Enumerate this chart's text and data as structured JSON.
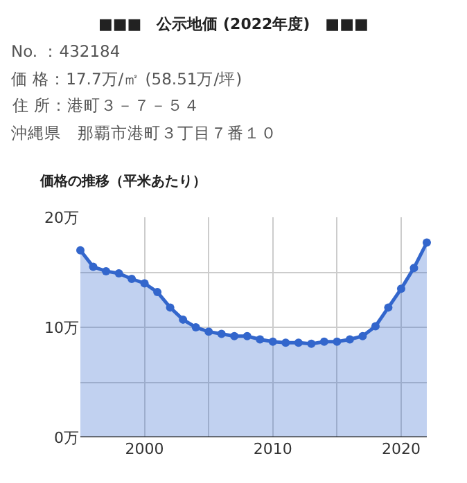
{
  "chart_data": {
    "type": "area",
    "title": "■■■　公示地価 (2022年度)　■■■",
    "subtitle": "価格の推移（平米あたり）",
    "annotations": [
      "No. ：432184",
      "価 格：17.7万/㎡ (58.51万/坪)",
      "住 所：港町３－７－５４",
      "沖縄県　那覇市港町３丁目７番１０"
    ],
    "x": [
      1995,
      1996,
      1997,
      1998,
      1999,
      2000,
      2001,
      2002,
      2003,
      2004,
      2005,
      2006,
      2007,
      2008,
      2009,
      2010,
      2011,
      2012,
      2013,
      2014,
      2015,
      2016,
      2017,
      2018,
      2019,
      2020,
      2021,
      2022
    ],
    "series": [
      {
        "color": "#3366cc",
        "values": [
          17.0,
          15.5,
          15.1,
          14.9,
          14.4,
          14.0,
          13.2,
          11.8,
          10.7,
          10.0,
          9.6,
          9.4,
          9.2,
          9.2,
          8.9,
          8.7,
          8.6,
          8.6,
          8.5,
          8.7,
          8.7,
          8.9,
          9.2,
          10.1,
          11.8,
          13.5,
          15.4,
          17.7
        ]
      }
    ],
    "xlim": [
      1995,
      2022
    ],
    "xticks": [
      2000,
      {
        "value": 2005,
        "label": null
      },
      2010,
      {
        "value": 2015,
        "label": null
      },
      2020
    ],
    "ylim": [
      0,
      20
    ],
    "yticks": [
      {
        "value": 0,
        "label": "0万"
      },
      {
        "value": 5,
        "label": null
      },
      {
        "value": 10,
        "label": "10万"
      },
      {
        "value": 15,
        "label": null
      },
      {
        "value": 20,
        "label": "20万"
      }
    ],
    "grid": true,
    "marker": "circle",
    "line_style": "solid"
  }
}
